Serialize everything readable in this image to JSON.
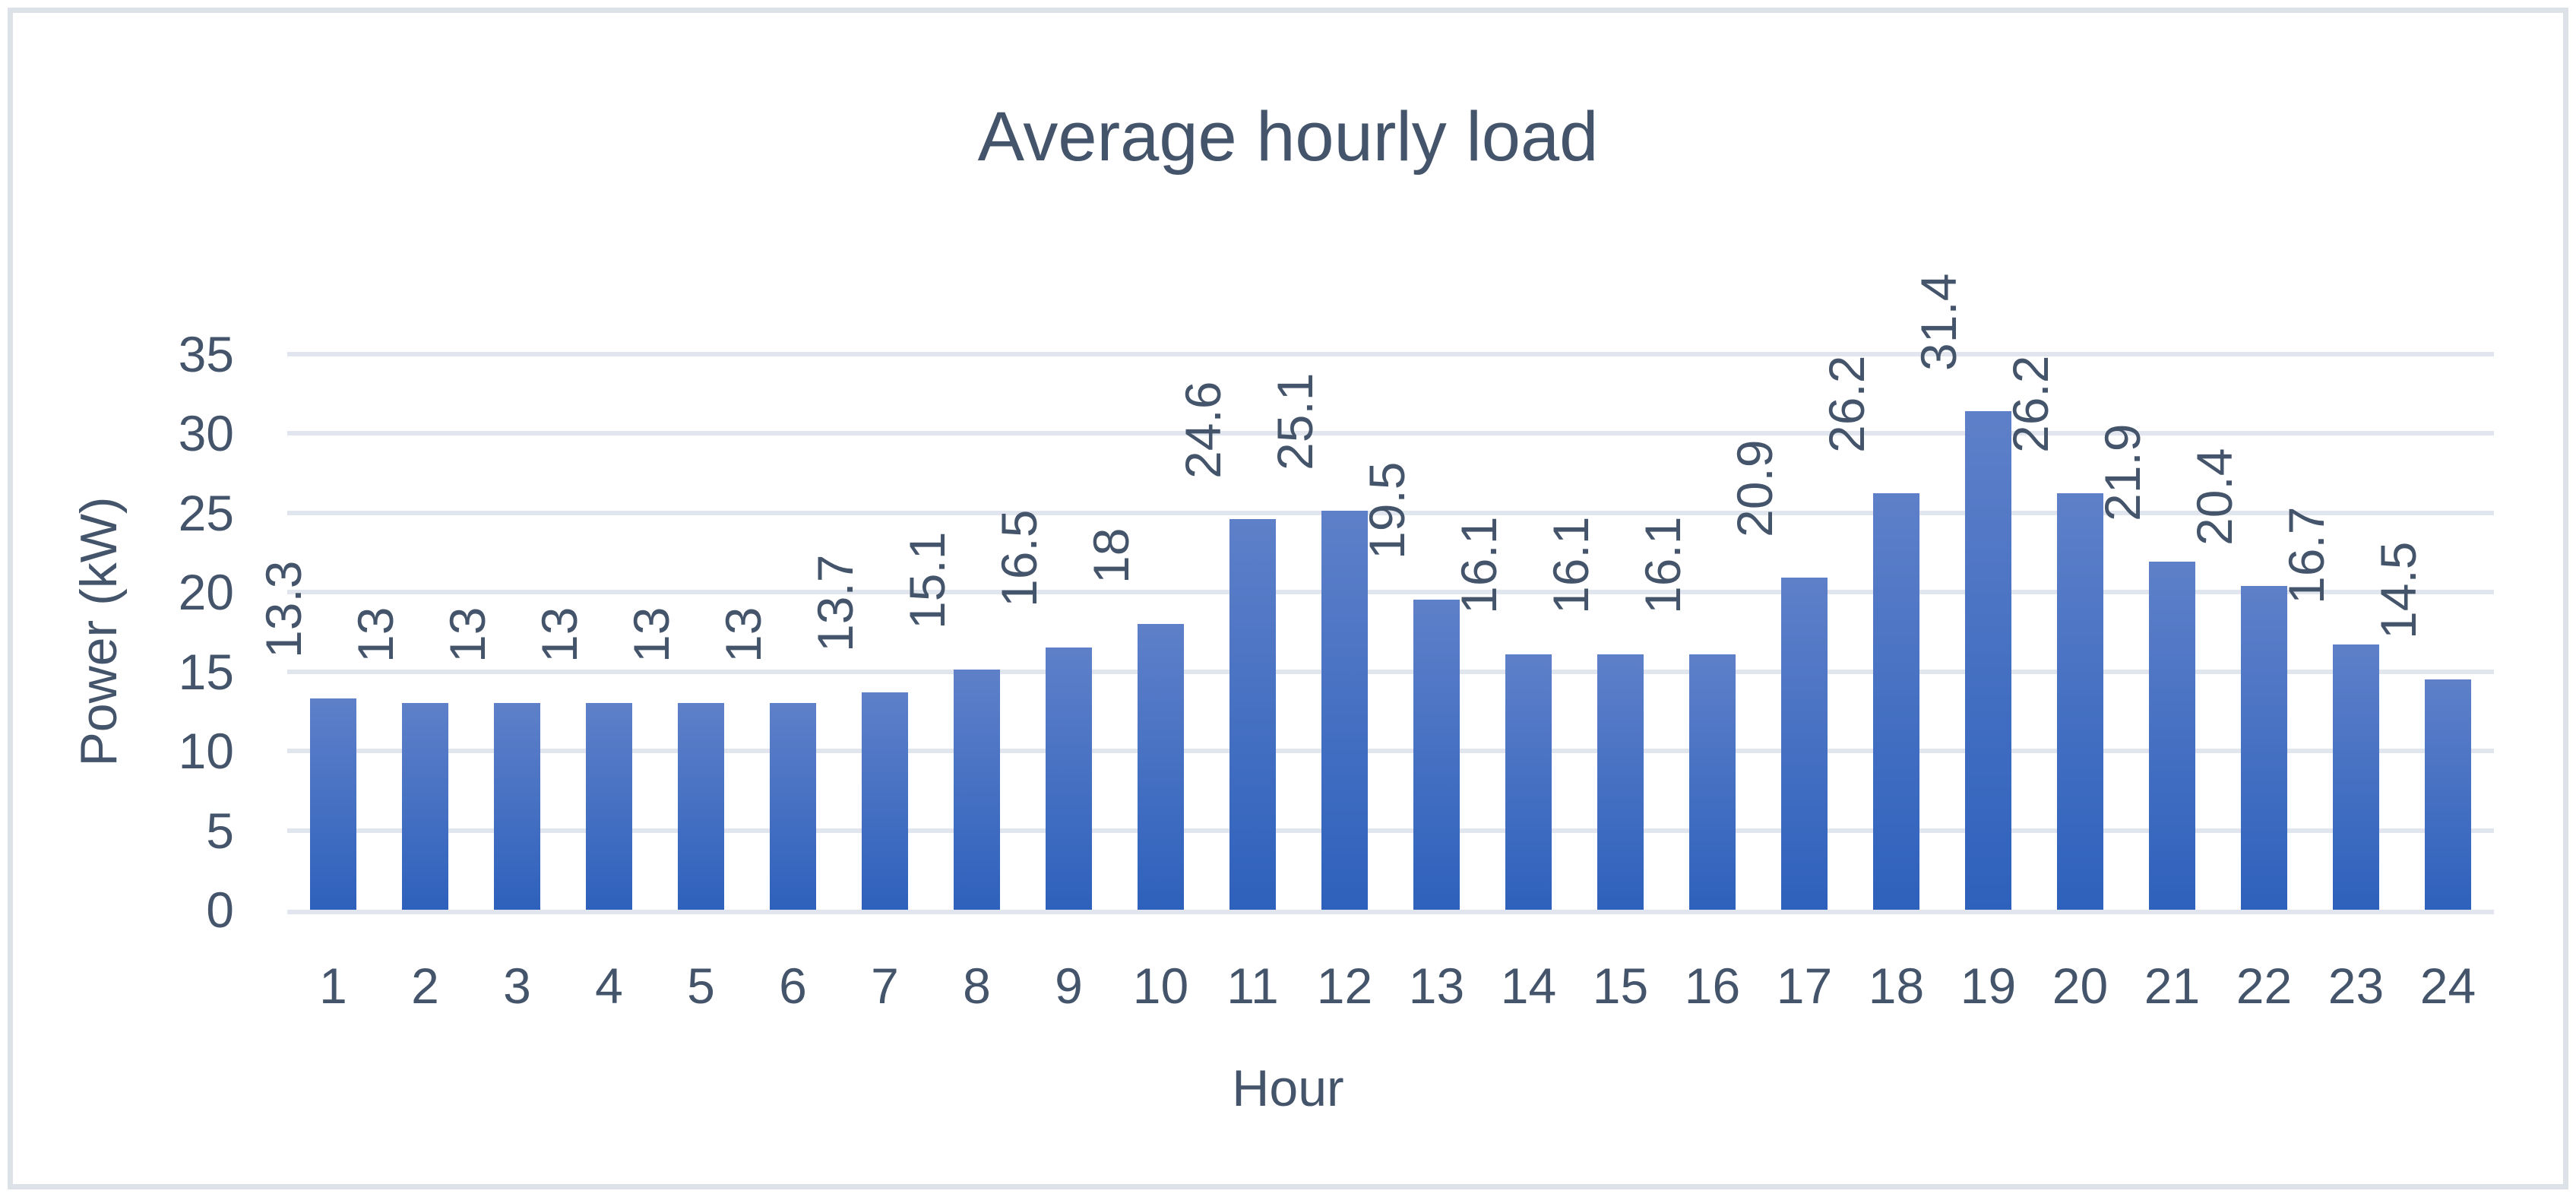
{
  "chart_data": {
    "type": "bar",
    "title": "Average hourly load",
    "xlabel": "Hour",
    "ylabel": "Power (kW)",
    "categories": [
      "1",
      "2",
      "3",
      "4",
      "5",
      "6",
      "7",
      "8",
      "9",
      "10",
      "11",
      "12",
      "13",
      "14",
      "15",
      "16",
      "17",
      "18",
      "19",
      "20",
      "21",
      "22",
      "23",
      "24"
    ],
    "values": [
      13.3,
      13,
      13,
      13,
      13,
      13,
      13.7,
      15.1,
      16.5,
      18,
      24.6,
      25.1,
      19.5,
      16.1,
      16.1,
      16.1,
      20.9,
      26.2,
      31.4,
      26.2,
      21.9,
      20.4,
      16.7,
      14.5
    ],
    "data_labels": [
      "13.3",
      "13",
      "13",
      "13",
      "13",
      "13",
      "13.7",
      "15.1",
      "16.5",
      "18",
      "24.6",
      "25.1",
      "19.5",
      "16.1",
      "16.1",
      "16.1",
      "20.9",
      "26.2",
      "31.4",
      "26.2",
      "21.9",
      "20.4",
      "16.7",
      "14.5"
    ],
    "yticks": [
      0,
      5,
      10,
      15,
      20,
      25,
      30,
      35
    ],
    "ylim": [
      0,
      35
    ],
    "grid": true,
    "legend_visible": false,
    "data_label_rotation_deg": -90,
    "colors": {
      "text": "#44546A",
      "gridline": "#e1e5ed",
      "frame_border": "#dde2e9",
      "bar_gradient_top": "#5e80c9",
      "bar_gradient_bottom": "#2e61bc"
    }
  }
}
